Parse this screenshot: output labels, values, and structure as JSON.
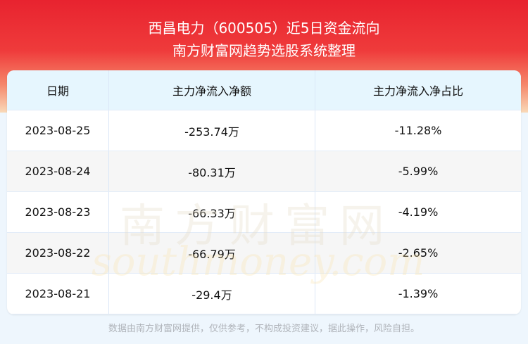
{
  "header": {
    "title": "西昌电力（600505）近5日资金流向",
    "subtitle": "南方财富网趋势选股系统整理"
  },
  "table": {
    "columns": [
      "日期",
      "主力净流入净额",
      "主力净流入净占比"
    ],
    "rows": [
      [
        "2023-08-25",
        "-253.74万",
        "-11.28%"
      ],
      [
        "2023-08-24",
        "-80.31万",
        "-5.99%"
      ],
      [
        "2023-08-23",
        "-66.33万",
        "-4.19%"
      ],
      [
        "2023-08-22",
        "-66.79万",
        "-2.65%"
      ],
      [
        "2023-08-21",
        "-29.4万",
        "-1.39%"
      ]
    ]
  },
  "watermark": {
    "cn": "南方财富网",
    "en": "southmoney.com"
  },
  "footer": "数据由南方财富网提供，仅供参考，不构成投资建议，据此操作，风险自担。",
  "colors": {
    "banner": "#e8232f",
    "header_bg": "#e6f6fe",
    "page_bg": "#eef6fd"
  }
}
